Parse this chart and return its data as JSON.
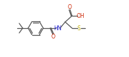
{
  "bg_color": "#ffffff",
  "line_color": "#555555",
  "atom_colors": {
    "O": "#cc2200",
    "N": "#2222cc",
    "S": "#bbaa00"
  },
  "font_size": 5.5,
  "line_width": 0.9,
  "fig_w": 1.88,
  "fig_h": 0.83,
  "dpi": 100,
  "xlim": [
    0,
    188
  ],
  "ylim": [
    0,
    83
  ]
}
